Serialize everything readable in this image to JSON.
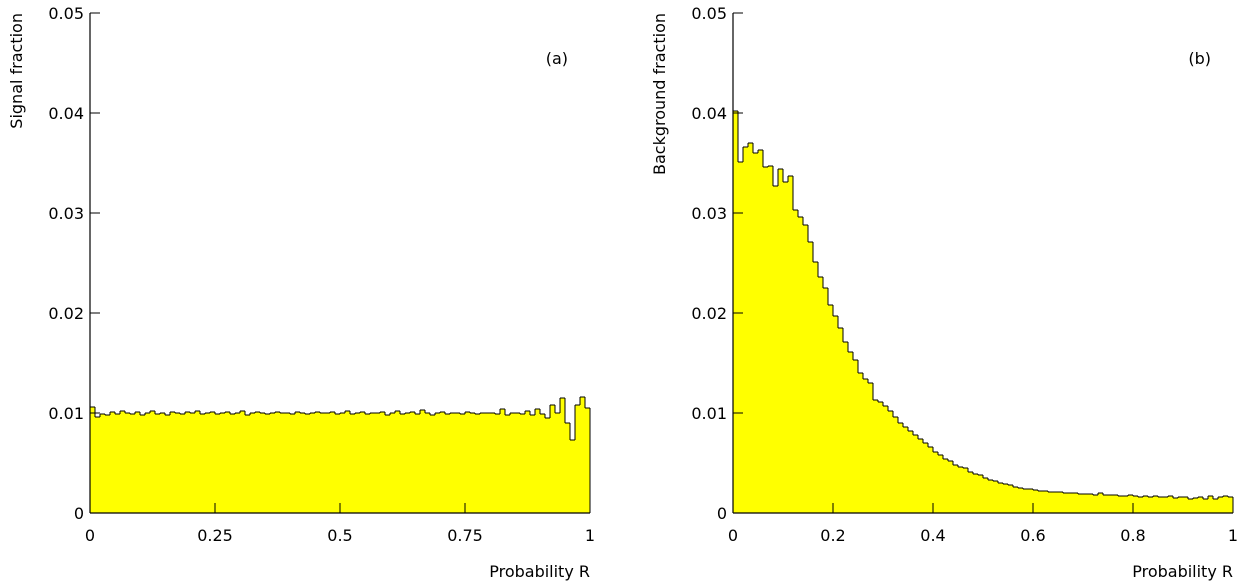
{
  "chart_data": [
    {
      "type": "histogram",
      "annotation": "(a)",
      "xlabel": "Probability R",
      "ylabel": "Signal fraction",
      "color": "#ffff00",
      "bins": [
        0,
        0.01,
        0.02,
        0.03,
        0.04,
        0.05,
        0.06,
        0.07,
        0.08,
        0.09,
        0.1,
        0.11,
        0.12,
        0.13,
        0.14,
        0.15,
        0.16,
        0.17,
        0.18,
        0.19,
        0.2,
        0.21,
        0.22,
        0.23,
        0.24,
        0.25,
        0.26,
        0.27,
        0.28,
        0.29,
        0.3,
        0.31,
        0.32,
        0.33,
        0.34,
        0.35,
        0.36,
        0.37,
        0.38,
        0.39,
        0.4,
        0.41,
        0.42,
        0.43,
        0.44,
        0.45,
        0.46,
        0.47,
        0.48,
        0.49,
        0.5,
        0.51,
        0.52,
        0.53,
        0.54,
        0.55,
        0.56,
        0.57,
        0.58,
        0.59,
        0.6,
        0.61,
        0.62,
        0.63,
        0.64,
        0.65,
        0.66,
        0.67,
        0.68,
        0.69,
        0.7,
        0.71,
        0.72,
        0.73,
        0.74,
        0.75,
        0.76,
        0.77,
        0.78,
        0.79,
        0.8,
        0.81,
        0.82,
        0.83,
        0.84,
        0.85,
        0.86,
        0.87,
        0.88,
        0.89,
        0.9,
        0.91,
        0.92,
        0.93,
        0.94,
        0.95,
        0.96,
        0.97,
        0.98,
        0.99,
        1
      ],
      "values": [
        0.0106,
        0.0096,
        0.0099,
        0.0098,
        0.0101,
        0.0099,
        0.0102,
        0.01,
        0.0099,
        0.0101,
        0.0098,
        0.01,
        0.0102,
        0.0099,
        0.01,
        0.0098,
        0.0101,
        0.01,
        0.0099,
        0.0101,
        0.01,
        0.0102,
        0.0099,
        0.01,
        0.0101,
        0.0099,
        0.01,
        0.0101,
        0.0099,
        0.01,
        0.0102,
        0.0098,
        0.01,
        0.0101,
        0.01,
        0.0099,
        0.01,
        0.0101,
        0.01,
        0.01,
        0.0099,
        0.0101,
        0.01,
        0.0099,
        0.01,
        0.0101,
        0.01,
        0.01,
        0.0101,
        0.0099,
        0.01,
        0.0102,
        0.0099,
        0.01,
        0.0101,
        0.0099,
        0.01,
        0.01,
        0.0101,
        0.0098,
        0.01,
        0.0102,
        0.0099,
        0.01,
        0.0101,
        0.0099,
        0.0103,
        0.01,
        0.0098,
        0.01,
        0.0101,
        0.0099,
        0.01,
        0.01,
        0.0099,
        0.0101,
        0.01,
        0.0099,
        0.01,
        0.01,
        0.01,
        0.0099,
        0.0104,
        0.0098,
        0.01,
        0.01,
        0.0099,
        0.0102,
        0.0098,
        0.0104,
        0.0099,
        0.0095,
        0.0108,
        0.01,
        0.0115,
        0.009,
        0.0073,
        0.0108,
        0.0116,
        0.0105
      ],
      "xlim": [
        0,
        1
      ],
      "xticks": [
        0,
        0.25,
        0.5,
        0.75,
        1
      ],
      "ylim": [
        0,
        0.05
      ],
      "yticks": [
        0,
        0.01,
        0.02,
        0.03,
        0.04,
        0.05
      ]
    },
    {
      "type": "histogram",
      "annotation": "(b)",
      "xlabel": "Probability R",
      "ylabel": "Background fraction",
      "color": "#ffff00",
      "bins": [
        0,
        0.01,
        0.02,
        0.03,
        0.04,
        0.05,
        0.06,
        0.07,
        0.08,
        0.09,
        0.1,
        0.11,
        0.12,
        0.13,
        0.14,
        0.15,
        0.16,
        0.17,
        0.18,
        0.19,
        0.2,
        0.21,
        0.22,
        0.23,
        0.24,
        0.25,
        0.26,
        0.27,
        0.28,
        0.29,
        0.3,
        0.31,
        0.32,
        0.33,
        0.34,
        0.35,
        0.36,
        0.37,
        0.38,
        0.39,
        0.4,
        0.41,
        0.42,
        0.43,
        0.44,
        0.45,
        0.46,
        0.47,
        0.48,
        0.49,
        0.5,
        0.51,
        0.52,
        0.53,
        0.54,
        0.55,
        0.56,
        0.57,
        0.58,
        0.59,
        0.6,
        0.61,
        0.62,
        0.63,
        0.64,
        0.65,
        0.66,
        0.67,
        0.68,
        0.69,
        0.7,
        0.71,
        0.72,
        0.73,
        0.74,
        0.75,
        0.76,
        0.77,
        0.78,
        0.79,
        0.8,
        0.81,
        0.82,
        0.83,
        0.84,
        0.85,
        0.86,
        0.87,
        0.88,
        0.89,
        0.9,
        0.91,
        0.92,
        0.93,
        0.94,
        0.95,
        0.96,
        0.97,
        0.98,
        0.99,
        1
      ],
      "values": [
        0.0402,
        0.0351,
        0.0366,
        0.037,
        0.036,
        0.0363,
        0.0346,
        0.0347,
        0.0327,
        0.0344,
        0.0331,
        0.0337,
        0.0303,
        0.0296,
        0.0288,
        0.0271,
        0.0251,
        0.0236,
        0.0225,
        0.0208,
        0.0197,
        0.0185,
        0.0171,
        0.0161,
        0.0153,
        0.014,
        0.0134,
        0.013,
        0.0113,
        0.0111,
        0.0107,
        0.0102,
        0.0096,
        0.009,
        0.0086,
        0.0082,
        0.0078,
        0.0074,
        0.007,
        0.0066,
        0.0061,
        0.0058,
        0.0054,
        0.0052,
        0.0048,
        0.0046,
        0.0045,
        0.0041,
        0.0039,
        0.0038,
        0.0035,
        0.0033,
        0.0032,
        0.003,
        0.0029,
        0.0028,
        0.0026,
        0.0025,
        0.0024,
        0.0024,
        0.0023,
        0.0022,
        0.0022,
        0.0021,
        0.0021,
        0.0021,
        0.002,
        0.002,
        0.002,
        0.0019,
        0.0019,
        0.0019,
        0.0018,
        0.002,
        0.0018,
        0.0018,
        0.0018,
        0.0017,
        0.0017,
        0.0018,
        0.0017,
        0.0016,
        0.0017,
        0.0016,
        0.0017,
        0.0016,
        0.0016,
        0.0017,
        0.0015,
        0.0016,
        0.0016,
        0.0014,
        0.0015,
        0.0016,
        0.0014,
        0.0017,
        0.0014,
        0.0016,
        0.0017,
        0.0016
      ],
      "xlim": [
        0,
        1
      ],
      "xticks": [
        0,
        0.2,
        0.4,
        0.6,
        0.8,
        1
      ],
      "ylim": [
        0,
        0.05
      ],
      "yticks": [
        0,
        0.01,
        0.02,
        0.03,
        0.04,
        0.05
      ]
    }
  ]
}
